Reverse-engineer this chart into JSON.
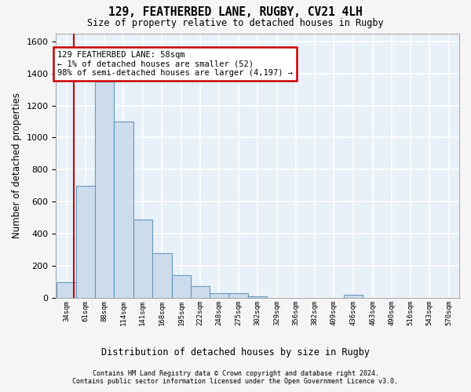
{
  "title1": "129, FEATHERBED LANE, RUGBY, CV21 4LH",
  "title2": "Size of property relative to detached houses in Rugby",
  "xlabel": "Distribution of detached houses by size in Rugby",
  "ylabel": "Number of detached properties",
  "bar_edges": [
    34,
    61,
    88,
    114,
    141,
    168,
    195,
    222,
    248,
    275,
    302,
    329,
    356,
    382,
    409,
    436,
    463,
    490,
    516,
    543,
    570
  ],
  "bar_heights": [
    100,
    700,
    1350,
    1100,
    490,
    280,
    140,
    75,
    30,
    30,
    10,
    0,
    0,
    0,
    0,
    20,
    0,
    0,
    0,
    0,
    0
  ],
  "bar_color": "#ccdcec",
  "bar_edge_color": "#6699bb",
  "vline_x": 58,
  "vline_color": "#cc0000",
  "ylim": [
    0,
    1650
  ],
  "yticks": [
    0,
    200,
    400,
    600,
    800,
    1000,
    1200,
    1400,
    1600
  ],
  "annotation_text": "129 FEATHERBED LANE: 58sqm\n← 1% of detached houses are smaller (52)\n98% of semi-detached houses are larger (4,197) →",
  "annotation_box_color": "#ffffff",
  "annotation_box_edge": "#cc0000",
  "footnote1": "Contains HM Land Registry data © Crown copyright and database right 2024.",
  "footnote2": "Contains public sector information licensed under the Open Government Licence v3.0.",
  "background_color": "#e8f0f8",
  "fig_background": "#f5f5f5",
  "grid_color": "#ffffff"
}
